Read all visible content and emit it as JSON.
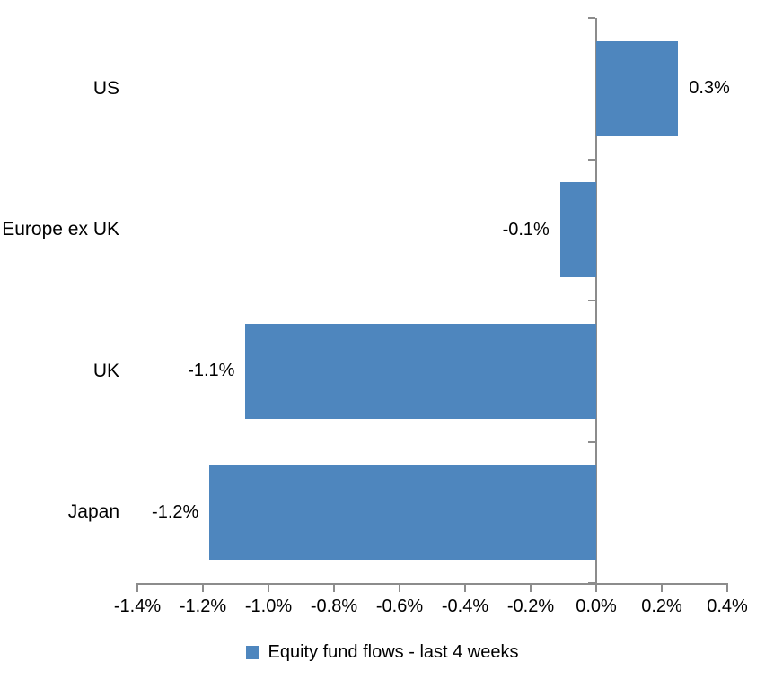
{
  "chart_data": {
    "type": "bar",
    "orientation": "horizontal",
    "title": "",
    "categories": [
      "US",
      "Europe ex UK",
      "UK",
      "Japan"
    ],
    "series": [
      {
        "name": "Equity fund flows - last 4 weeks",
        "values": [
          0.3,
          -0.1,
          -1.1,
          -1.2
        ],
        "data_labels": [
          "0.3%",
          "-0.1%",
          "-1.1%",
          "-1.2%"
        ],
        "values_as_drawn": [
          0.25,
          -0.11,
          -1.07,
          -1.18
        ],
        "color": "#4E86BE"
      }
    ],
    "xlabel": "",
    "ylabel": "",
    "xlim": [
      -1.4,
      0.4
    ],
    "x_tick_values": [
      -1.4,
      -1.2,
      -1.0,
      -0.8,
      -0.6,
      -0.4,
      -0.2,
      0.0,
      0.2,
      0.4
    ],
    "x_tick_labels": [
      "-1.4%",
      "-1.2%",
      "-1.0%",
      "-0.8%",
      "-0.6%",
      "-0.4%",
      "-0.2%",
      "0.0%",
      "0.2%",
      "0.4%"
    ],
    "grid": false,
    "legend": {
      "position": "bottom",
      "entries": [
        {
          "label": "Equity fund flows - last 4 weeks",
          "color": "#4E86BE"
        }
      ]
    },
    "axis_color": "#8C8C8C",
    "text_color": "#000000",
    "background_color": "#FFFFFF"
  }
}
